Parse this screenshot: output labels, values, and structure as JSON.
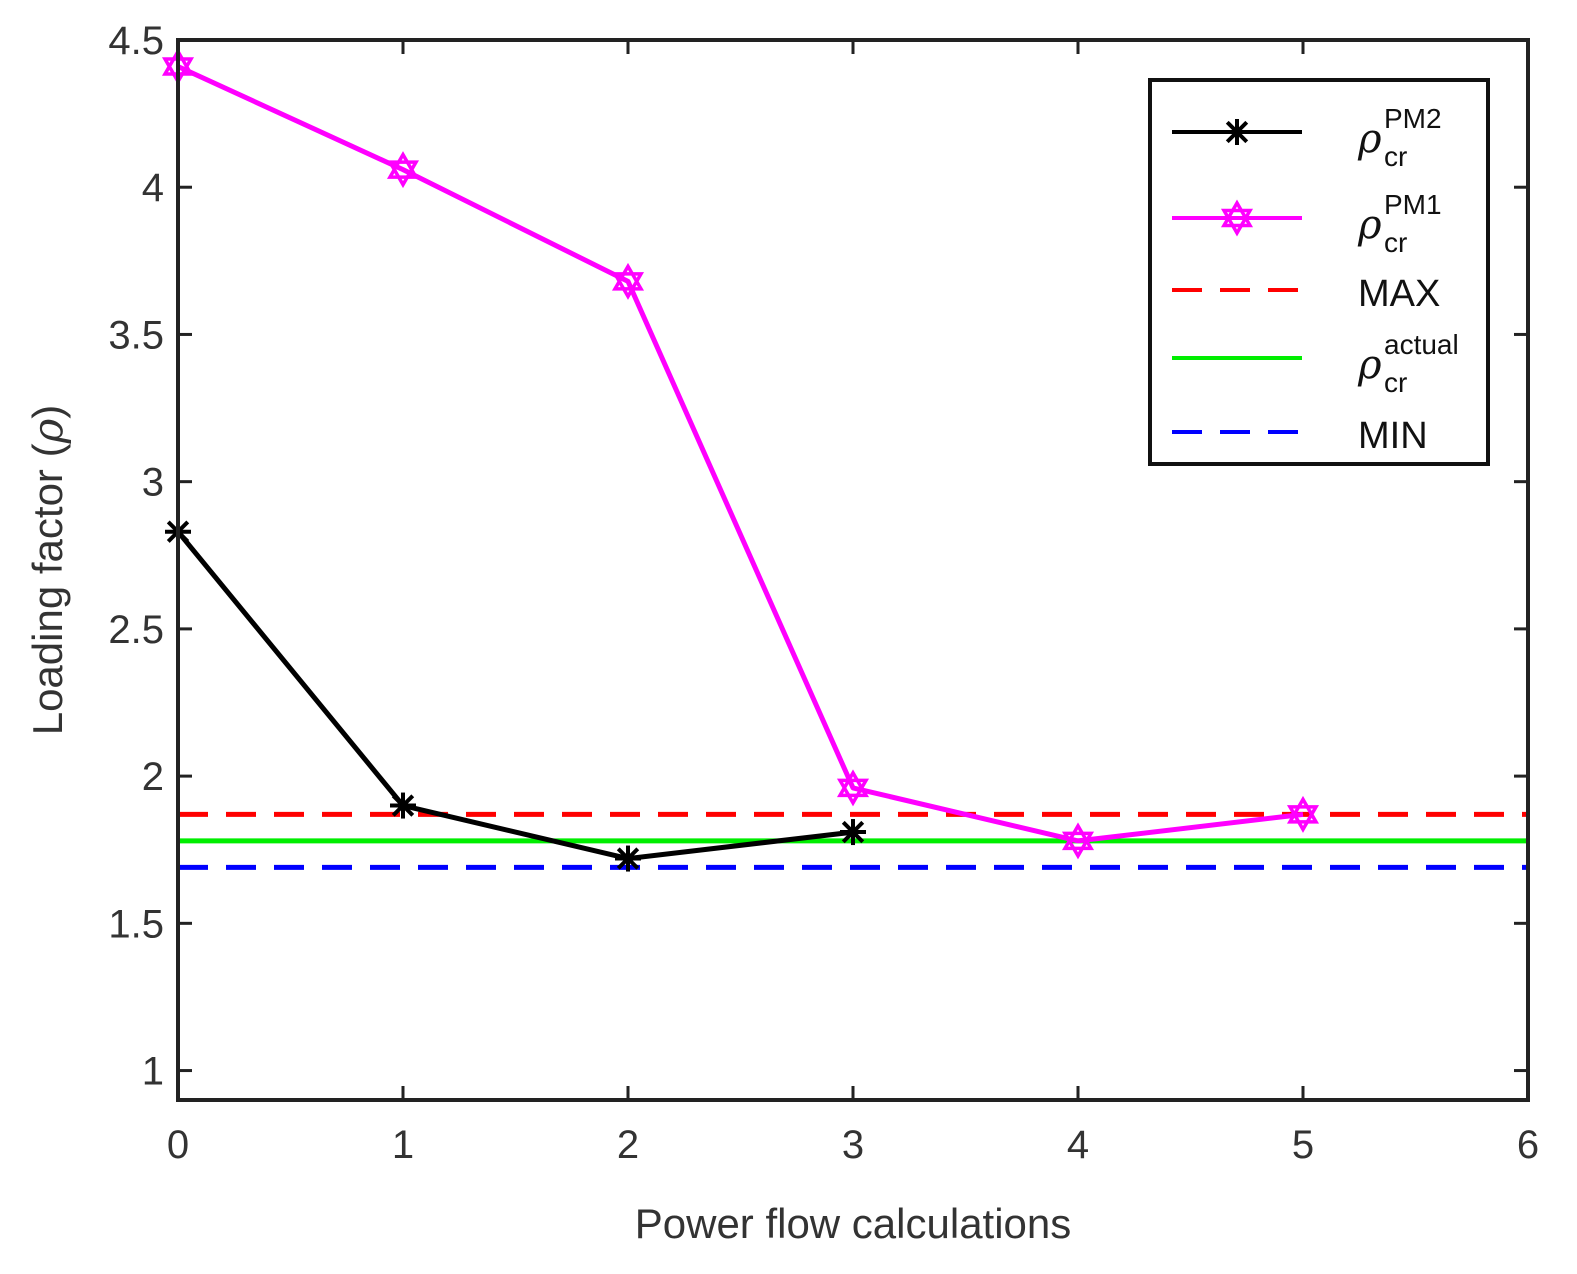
{
  "chart_data": {
    "type": "line",
    "title": "",
    "xlabel": "Power flow calculations",
    "ylabel_main": "Loading factor (",
    "ylabel_symbol": "ρ",
    "ylabel_close": ")",
    "xlim": [
      0,
      6
    ],
    "ylim": [
      0.9,
      4.5
    ],
    "xticks": [
      0,
      1,
      2,
      3,
      4,
      5,
      6
    ],
    "yticks": [
      1,
      1.5,
      2,
      2.5,
      3,
      3.5,
      4,
      4.5
    ],
    "ytick_labels": [
      "1",
      "1.5",
      "2",
      "2.5",
      "3",
      "3.5",
      "4",
      "4.5"
    ],
    "grid": false,
    "legend_position": "top-right",
    "series": [
      {
        "name": "rho_cr_PM2",
        "symbol": "ρ",
        "sup": "PM2",
        "sub": "cr",
        "color": "#000000",
        "marker": "asterisk",
        "x": [
          0,
          1,
          2,
          3
        ],
        "values": [
          2.83,
          1.9,
          1.72,
          1.81
        ]
      },
      {
        "name": "rho_cr_PM1",
        "symbol": "ρ",
        "sup": "PM1",
        "sub": "cr",
        "color": "#ff00ff",
        "marker": "hexagram",
        "x": [
          0,
          1,
          2,
          3,
          4,
          5
        ],
        "values": [
          4.41,
          4.06,
          3.68,
          1.96,
          1.78,
          1.87
        ]
      }
    ],
    "reference_lines": [
      {
        "name": "MAX",
        "label": "MAX",
        "value": 1.87,
        "color": "#ff0000",
        "style": "dashed"
      },
      {
        "name": "rho_cr_actual",
        "symbol": "ρ",
        "sup": "actual",
        "sub": "cr",
        "value": 1.78,
        "color": "#00ee00",
        "style": "solid"
      },
      {
        "name": "MIN",
        "label": "MIN",
        "value": 1.69,
        "color": "#0000ff",
        "style": "dashed"
      }
    ]
  }
}
